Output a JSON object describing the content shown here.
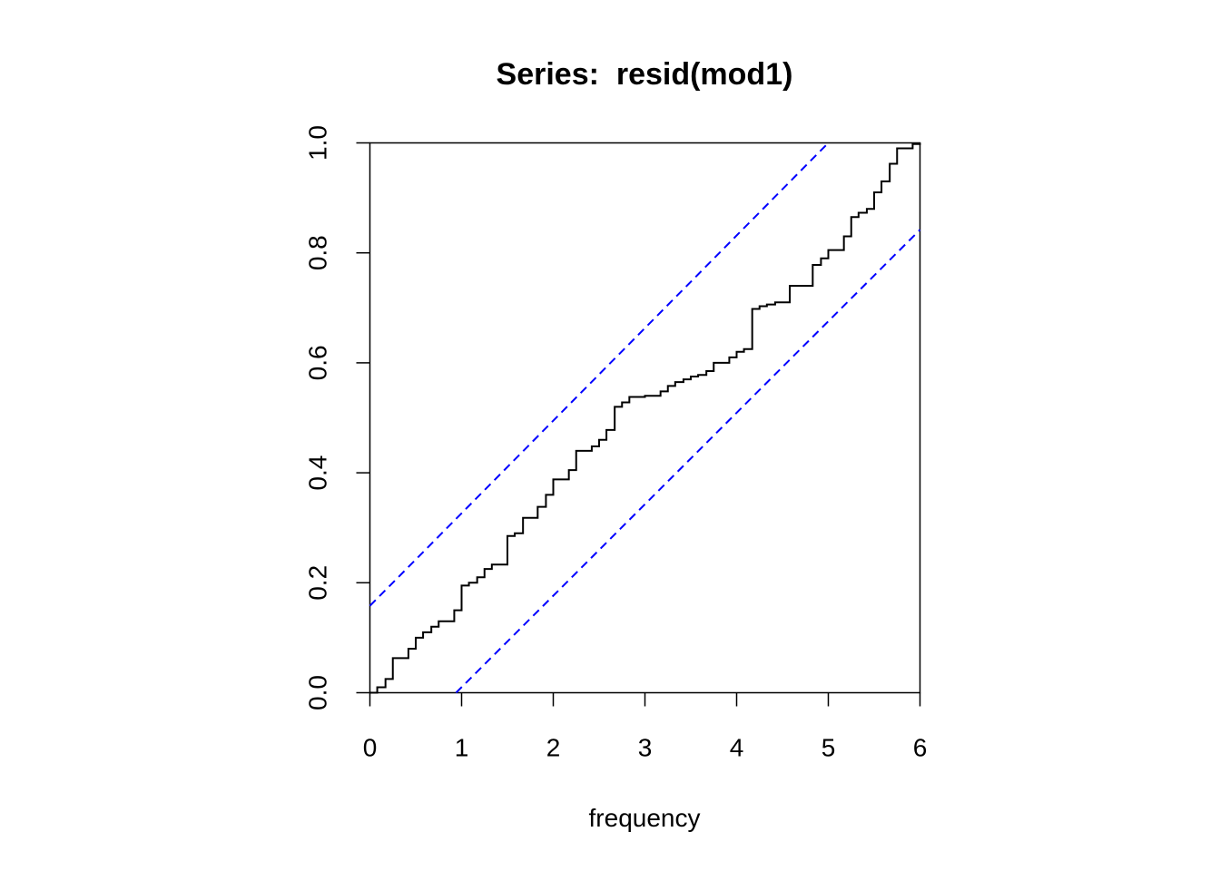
{
  "chart_data": {
    "type": "line",
    "title": "Series:  resid(mod1)",
    "xlabel": "frequency",
    "ylabel": "",
    "xlim": [
      0,
      6
    ],
    "ylim": [
      0,
      1
    ],
    "xticks": [
      "0",
      "1",
      "2",
      "3",
      "4",
      "5",
      "6"
    ],
    "yticks": [
      "0.0",
      "0.2",
      "0.4",
      "0.6",
      "0.8",
      "1.0"
    ],
    "grid": false,
    "legend": "none",
    "series": [
      {
        "style": "step",
        "color": "#000000",
        "x": [
          0,
          0.08,
          0.17,
          0.25,
          0.42,
          0.5,
          0.58,
          0.67,
          0.75,
          0.92,
          1.0,
          1.08,
          1.17,
          1.25,
          1.33,
          1.5,
          1.58,
          1.67,
          1.83,
          1.92,
          2.0,
          2.17,
          2.25,
          2.42,
          2.5,
          2.58,
          2.67,
          2.75,
          2.83,
          3.0,
          3.17,
          3.25,
          3.33,
          3.42,
          3.5,
          3.58,
          3.67,
          3.75,
          3.92,
          4.0,
          4.08,
          4.17,
          4.25,
          4.33,
          4.42,
          4.58,
          4.83,
          4.92,
          5.0,
          5.17,
          5.25,
          5.33,
          5.42,
          5.5,
          5.58,
          5.67,
          5.75,
          5.92,
          6.0
        ],
        "y": [
          0.0,
          0.01,
          0.025,
          0.063,
          0.08,
          0.1,
          0.11,
          0.12,
          0.13,
          0.15,
          0.195,
          0.2,
          0.21,
          0.225,
          0.233,
          0.285,
          0.29,
          0.318,
          0.338,
          0.36,
          0.388,
          0.405,
          0.44,
          0.448,
          0.46,
          0.478,
          0.52,
          0.528,
          0.538,
          0.54,
          0.548,
          0.558,
          0.565,
          0.57,
          0.575,
          0.578,
          0.585,
          0.6,
          0.61,
          0.62,
          0.625,
          0.698,
          0.703,
          0.706,
          0.71,
          0.74,
          0.778,
          0.79,
          0.805,
          0.83,
          0.865,
          0.873,
          0.88,
          0.91,
          0.93,
          0.962,
          0.99,
          0.998,
          1.0
        ]
      },
      {
        "style": "dashed",
        "color": "#0000FF",
        "x": [
          0,
          5.0
        ],
        "y": [
          0.158,
          1.0
        ]
      },
      {
        "style": "dashed",
        "color": "#0000FF",
        "x": [
          0.94,
          6.0
        ],
        "y": [
          0.0,
          0.842
        ]
      }
    ]
  }
}
